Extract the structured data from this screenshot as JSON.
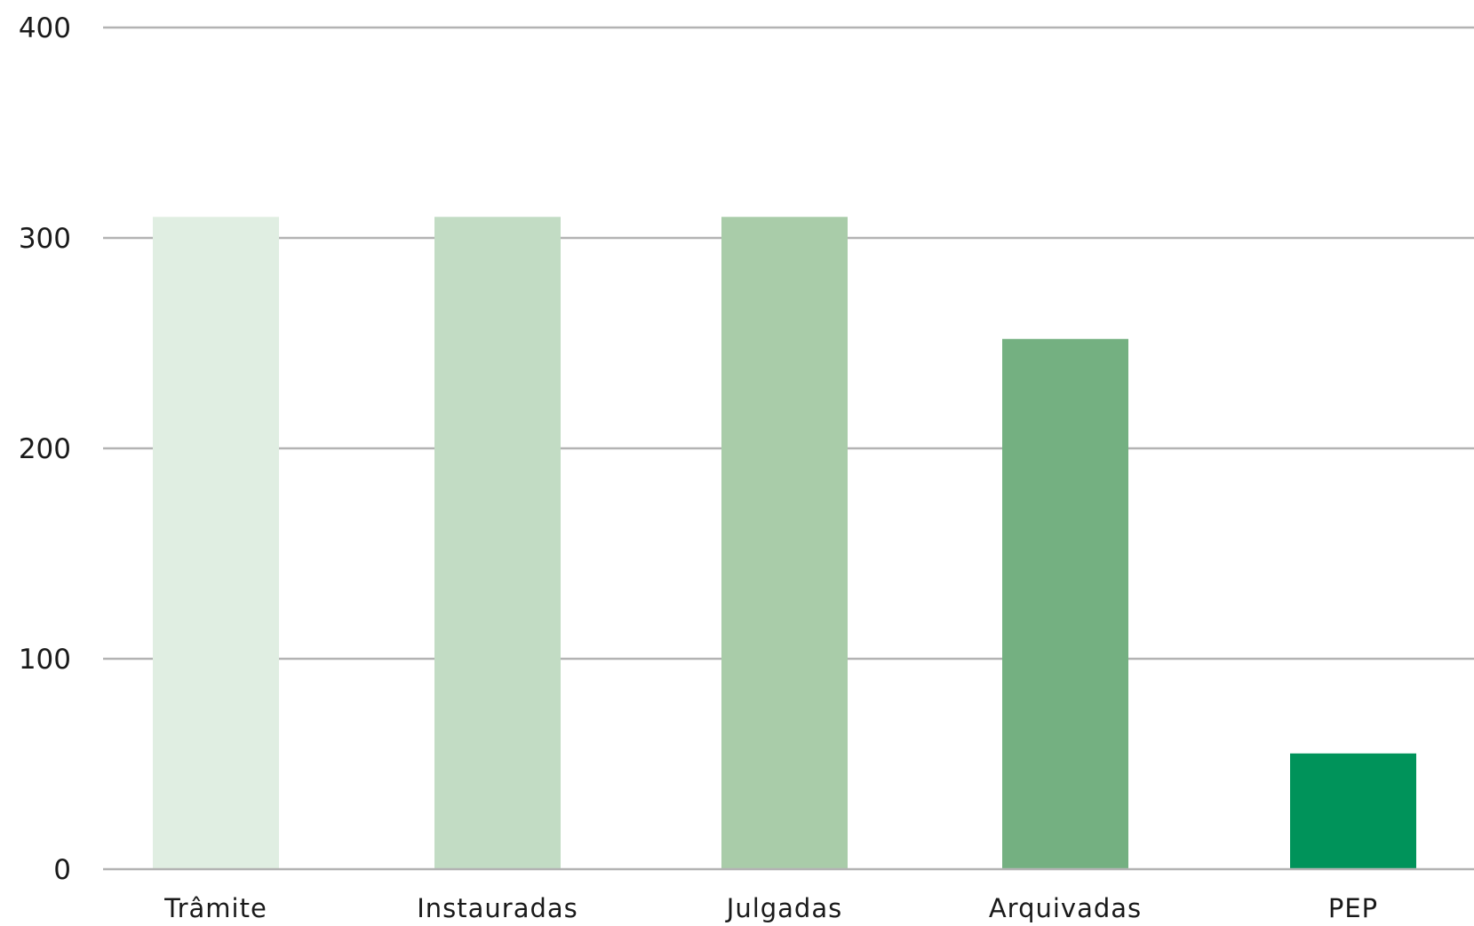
{
  "chart_data": {
    "type": "bar",
    "title": "",
    "xlabel": "",
    "ylabel": "",
    "ylim": [
      0,
      400
    ],
    "yticks": [
      "0",
      "100",
      "200",
      "300",
      "400"
    ],
    "grid": true,
    "categories": [
      "Trâmite",
      "Instauradas",
      "Julgadas",
      "Arquivadas",
      "PEP"
    ],
    "values": [
      310,
      310,
      310,
      252,
      55
    ],
    "colors": [
      "#e0eee2",
      "#c2dcc4",
      "#a9cca9",
      "#74b081",
      "#00935a"
    ]
  }
}
